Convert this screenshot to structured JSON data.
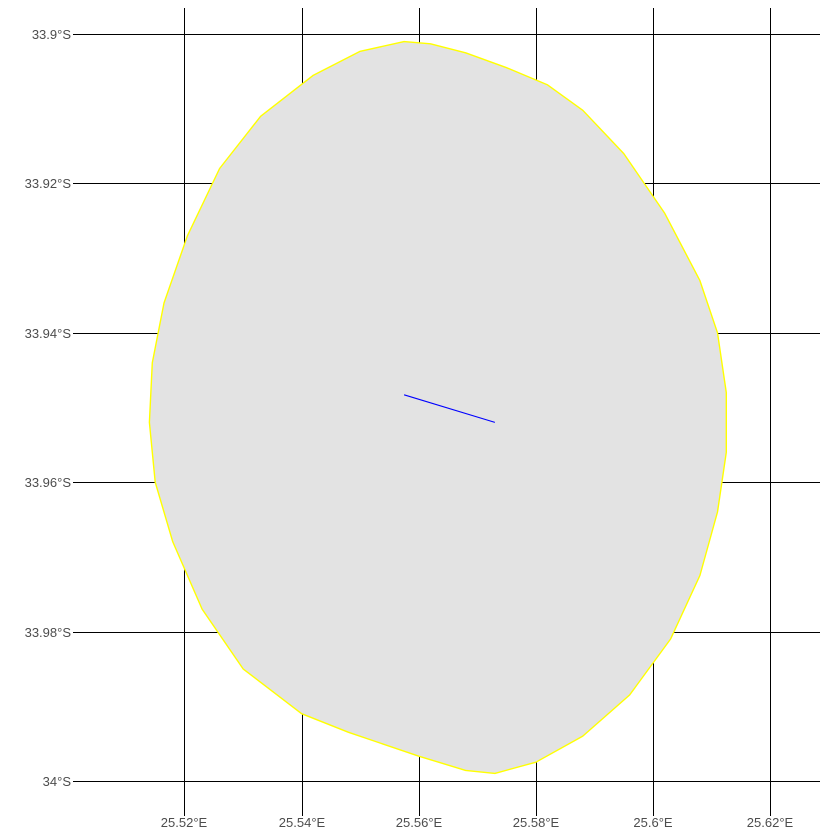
{
  "map": {
    "lon_range": [
      25.5025,
      25.6285
    ],
    "lat_range": [
      -34.0035,
      -33.8965
    ],
    "grid_lons": [
      25.52,
      25.54,
      25.56,
      25.58,
      25.6,
      25.62
    ],
    "grid_lats": [
      -33.9,
      -33.92,
      -33.94,
      -33.96,
      -33.98,
      -34.0
    ],
    "lon_labels": [
      "25.52°E",
      "25.54°E",
      "25.56°E",
      "25.58°E",
      "25.6°E",
      "25.62°E"
    ],
    "lat_labels": [
      "33.9°S",
      "33.92°S",
      "33.94°S",
      "33.96°S",
      "33.98°S",
      "34°S"
    ],
    "colors": {
      "background": "#ffffff",
      "grid": "#000000",
      "label": "#4d4d4d",
      "region_fill": "#e3e3e3",
      "region_outline": "#ffff00",
      "track": "#0000ff"
    },
    "region_polygon": [
      [
        25.5575,
        -33.901
      ],
      [
        25.562,
        -33.9013
      ],
      [
        25.568,
        -33.9025
      ],
      [
        25.575,
        -33.9045
      ],
      [
        25.582,
        -33.9068
      ],
      [
        25.588,
        -33.9102
      ],
      [
        25.595,
        -33.916
      ],
      [
        25.602,
        -33.924
      ],
      [
        25.608,
        -33.933
      ],
      [
        25.611,
        -33.94
      ],
      [
        25.6125,
        -33.948
      ],
      [
        25.6125,
        -33.956
      ],
      [
        25.611,
        -33.964
      ],
      [
        25.608,
        -33.9725
      ],
      [
        25.603,
        -33.981
      ],
      [
        25.596,
        -33.9885
      ],
      [
        25.588,
        -33.994
      ],
      [
        25.58,
        -33.9975
      ],
      [
        25.573,
        -33.999
      ],
      [
        25.568,
        -33.9986
      ],
      [
        25.56,
        -33.9967
      ],
      [
        25.548,
        -33.9935
      ],
      [
        25.54,
        -33.991
      ],
      [
        25.53,
        -33.985
      ],
      [
        25.523,
        -33.977
      ],
      [
        25.518,
        -33.968
      ],
      [
        25.515,
        -33.96
      ],
      [
        25.514,
        -33.952
      ],
      [
        25.5145,
        -33.944
      ],
      [
        25.5165,
        -33.936
      ],
      [
        25.5205,
        -33.927
      ],
      [
        25.526,
        -33.918
      ],
      [
        25.533,
        -33.911
      ],
      [
        25.542,
        -33.9055
      ],
      [
        25.55,
        -33.9023
      ]
    ],
    "track": [
      [
        25.5575,
        -33.9483
      ],
      [
        25.573,
        -33.952
      ]
    ]
  }
}
